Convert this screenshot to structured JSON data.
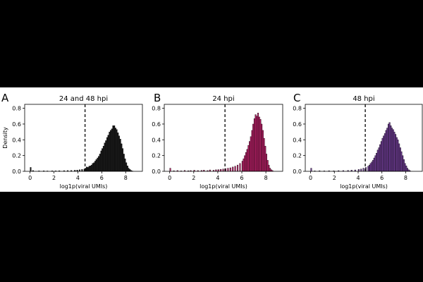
{
  "figure": {
    "background": "#000000",
    "panel_background": "#ffffff",
    "threshold": 4.6,
    "bin_width": 0.1,
    "edge_color": "#000000"
  },
  "chart_data": [
    {
      "type": "bar",
      "panel_letter": "A",
      "title": "24 and 48 hpi",
      "xlabel": "log1p(viral UMIs)",
      "ylabel": "Density",
      "xlim": [
        -0.45,
        9.4
      ],
      "ylim": [
        0,
        0.85
      ],
      "xticks": [
        0,
        2,
        4,
        6,
        8
      ],
      "yticks": [
        0.0,
        0.2,
        0.4,
        0.6,
        0.8
      ],
      "color": "#1a1a1a",
      "threshold_line": "dashed",
      "series": [
        {
          "values": [
            [
              0.0,
              0.05
            ],
            [
              0.2,
              0.01
            ],
            [
              0.7,
              0.006
            ],
            [
              1.1,
              0.007
            ],
            [
              1.4,
              0.005
            ],
            [
              1.8,
              0.007
            ],
            [
              2.1,
              0.006
            ],
            [
              2.4,
              0.008
            ],
            [
              2.8,
              0.009
            ],
            [
              3.1,
              0.01
            ],
            [
              3.4,
              0.011
            ],
            [
              3.7,
              0.014
            ],
            [
              3.9,
              0.016
            ],
            [
              4.1,
              0.02
            ],
            [
              4.3,
              0.024
            ],
            [
              4.5,
              0.03
            ],
            [
              4.6,
              0.04
            ],
            [
              4.7,
              0.055
            ],
            [
              4.8,
              0.05
            ],
            [
              4.9,
              0.065
            ],
            [
              5.0,
              0.07
            ],
            [
              5.1,
              0.08
            ],
            [
              5.2,
              0.1
            ],
            [
              5.3,
              0.11
            ],
            [
              5.4,
              0.13
            ],
            [
              5.5,
              0.15
            ],
            [
              5.6,
              0.17
            ],
            [
              5.7,
              0.19
            ],
            [
              5.8,
              0.22
            ],
            [
              5.9,
              0.26
            ],
            [
              6.0,
              0.29
            ],
            [
              6.1,
              0.32
            ],
            [
              6.2,
              0.36
            ],
            [
              6.3,
              0.39
            ],
            [
              6.4,
              0.43
            ],
            [
              6.5,
              0.46
            ],
            [
              6.6,
              0.5
            ],
            [
              6.7,
              0.52
            ],
            [
              6.8,
              0.54
            ],
            [
              6.9,
              0.58
            ],
            [
              7.0,
              0.58
            ],
            [
              7.1,
              0.55
            ],
            [
              7.2,
              0.53
            ],
            [
              7.3,
              0.49
            ],
            [
              7.4,
              0.45
            ],
            [
              7.5,
              0.41
            ],
            [
              7.6,
              0.35
            ],
            [
              7.7,
              0.29
            ],
            [
              7.8,
              0.22
            ],
            [
              7.9,
              0.16
            ],
            [
              8.0,
              0.11
            ],
            [
              8.1,
              0.07
            ],
            [
              8.2,
              0.04
            ],
            [
              8.3,
              0.025
            ],
            [
              8.4,
              0.012
            ],
            [
              8.5,
              0.005
            ]
          ]
        }
      ]
    },
    {
      "type": "bar",
      "panel_letter": "B",
      "title": "24 hpi",
      "xlabel": "log1p(viral UMIs)",
      "xlim": [
        -0.45,
        9.4
      ],
      "ylim": [
        0,
        0.85
      ],
      "xticks": [
        0,
        2,
        4,
        6,
        8
      ],
      "yticks": [
        0.0,
        0.2,
        0.4,
        0.6,
        0.8
      ],
      "color": "#b01e62",
      "threshold_line": "dashed",
      "series": [
        {
          "values": [
            [
              0.0,
              0.04
            ],
            [
              0.3,
              0.008
            ],
            [
              0.6,
              0.01
            ],
            [
              0.9,
              0.006
            ],
            [
              1.2,
              0.012
            ],
            [
              1.5,
              0.008
            ],
            [
              1.7,
              0.01
            ],
            [
              2.0,
              0.014
            ],
            [
              2.3,
              0.01
            ],
            [
              2.6,
              0.012
            ],
            [
              2.8,
              0.016
            ],
            [
              3.1,
              0.01
            ],
            [
              3.3,
              0.018
            ],
            [
              3.6,
              0.014
            ],
            [
              3.8,
              0.02
            ],
            [
              4.0,
              0.022
            ],
            [
              4.2,
              0.026
            ],
            [
              4.4,
              0.03
            ],
            [
              4.6,
              0.035
            ],
            [
              4.8,
              0.04
            ],
            [
              5.0,
              0.045
            ],
            [
              5.2,
              0.055
            ],
            [
              5.4,
              0.065
            ],
            [
              5.6,
              0.08
            ],
            [
              5.8,
              0.1
            ],
            [
              6.0,
              0.13
            ],
            [
              6.1,
              0.16
            ],
            [
              6.2,
              0.2
            ],
            [
              6.3,
              0.24
            ],
            [
              6.4,
              0.28
            ],
            [
              6.5,
              0.33
            ],
            [
              6.6,
              0.38
            ],
            [
              6.7,
              0.44
            ],
            [
              6.8,
              0.52
            ],
            [
              6.9,
              0.6
            ],
            [
              7.0,
              0.67
            ],
            [
              7.1,
              0.72
            ],
            [
              7.2,
              0.7
            ],
            [
              7.3,
              0.74
            ],
            [
              7.4,
              0.69
            ],
            [
              7.5,
              0.66
            ],
            [
              7.6,
              0.6
            ],
            [
              7.7,
              0.52
            ],
            [
              7.8,
              0.42
            ],
            [
              7.9,
              0.32
            ],
            [
              8.0,
              0.22
            ],
            [
              8.1,
              0.14
            ],
            [
              8.2,
              0.08
            ],
            [
              8.3,
              0.04
            ],
            [
              8.4,
              0.02
            ],
            [
              8.5,
              0.01
            ]
          ]
        }
      ]
    },
    {
      "type": "bar",
      "panel_letter": "C",
      "title": "48 hpi",
      "xlabel": "log1p(viral UMIs)",
      "xlim": [
        -0.45,
        9.4
      ],
      "ylim": [
        0,
        0.85
      ],
      "xticks": [
        0,
        2,
        4,
        6,
        8
      ],
      "yticks": [
        0.0,
        0.2,
        0.4,
        0.6,
        0.8
      ],
      "color": "#6a3a8e",
      "threshold_line": "dashed",
      "series": [
        {
          "values": [
            [
              0.0,
              0.04
            ],
            [
              0.3,
              0.006
            ],
            [
              0.7,
              0.008
            ],
            [
              1.1,
              0.006
            ],
            [
              1.5,
              0.008
            ],
            [
              1.9,
              0.007
            ],
            [
              2.3,
              0.009
            ],
            [
              2.7,
              0.01
            ],
            [
              3.1,
              0.012
            ],
            [
              3.4,
              0.015
            ],
            [
              3.7,
              0.018
            ],
            [
              4.0,
              0.024
            ],
            [
              4.2,
              0.03
            ],
            [
              4.4,
              0.04
            ],
            [
              4.6,
              0.05
            ],
            [
              4.8,
              0.065
            ],
            [
              4.9,
              0.08
            ],
            [
              5.0,
              0.1
            ],
            [
              5.1,
              0.12
            ],
            [
              5.2,
              0.14
            ],
            [
              5.3,
              0.17
            ],
            [
              5.4,
              0.2
            ],
            [
              5.5,
              0.23
            ],
            [
              5.6,
              0.27
            ],
            [
              5.7,
              0.3
            ],
            [
              5.8,
              0.34
            ],
            [
              5.9,
              0.38
            ],
            [
              6.0,
              0.42
            ],
            [
              6.1,
              0.45
            ],
            [
              6.2,
              0.48
            ],
            [
              6.3,
              0.52
            ],
            [
              6.4,
              0.55
            ],
            [
              6.5,
              0.6
            ],
            [
              6.6,
              0.62
            ],
            [
              6.7,
              0.58
            ],
            [
              6.8,
              0.55
            ],
            [
              6.9,
              0.53
            ],
            [
              7.0,
              0.5
            ],
            [
              7.1,
              0.47
            ],
            [
              7.2,
              0.43
            ],
            [
              7.3,
              0.4
            ],
            [
              7.4,
              0.35
            ],
            [
              7.5,
              0.3
            ],
            [
              7.6,
              0.25
            ],
            [
              7.7,
              0.2
            ],
            [
              7.8,
              0.15
            ],
            [
              7.9,
              0.1
            ],
            [
              8.0,
              0.07
            ],
            [
              8.1,
              0.04
            ],
            [
              8.2,
              0.02
            ],
            [
              8.3,
              0.01
            ]
          ]
        }
      ]
    }
  ]
}
